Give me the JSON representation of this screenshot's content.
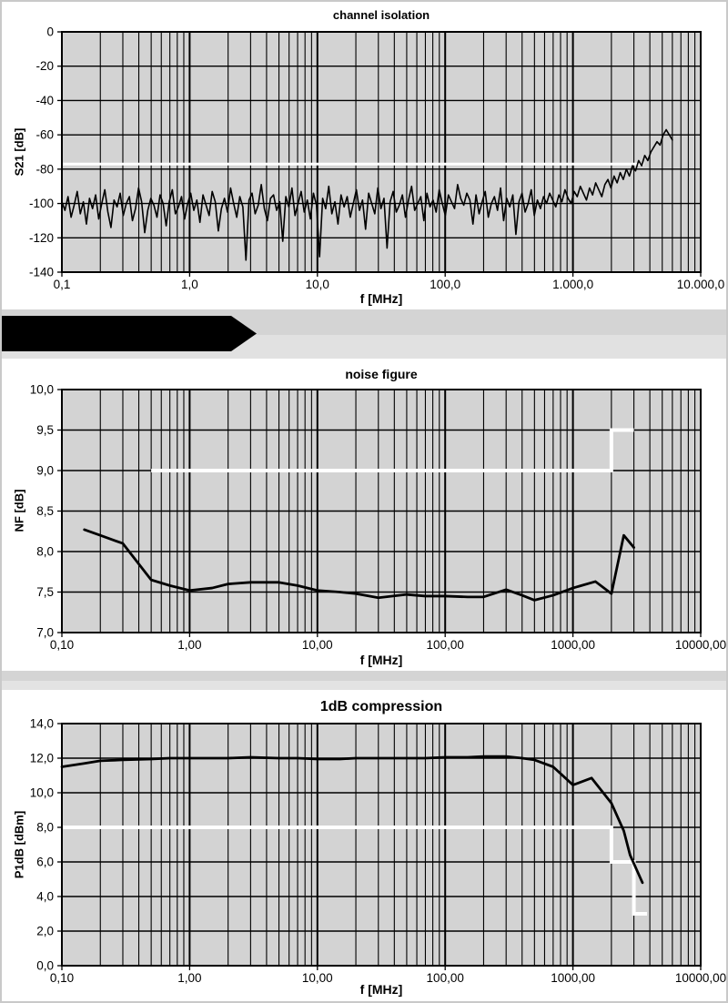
{
  "page": {
    "background": "#ffffff",
    "frame_color": "#c9c9c9",
    "plot_background": "#d3d3d3",
    "grid_color": "#000000",
    "trace_color": "#000000",
    "limit_color": "#ffffff",
    "separator_band_colors": [
      "#d4d4d4",
      "#e1e1e1"
    ]
  },
  "banner": {
    "description": "black right-pointing arrow banner, text unreadable (black on black)",
    "color": "#000000"
  },
  "chart_data": [
    {
      "type": "line",
      "title": "channel isolation",
      "xlabel": "f [MHz]",
      "ylabel": "S21 [dB]",
      "xscale": "log",
      "xlim": [
        0.1,
        10000
      ],
      "ylim": [
        -140,
        0
      ],
      "grid": true,
      "x_ticks": {
        "values": [
          0.1,
          1,
          10,
          100,
          1000,
          10000
        ],
        "labels": [
          "0,1",
          "1,0",
          "10,0",
          "100,0",
          "1.000,0",
          "10.000,0"
        ]
      },
      "y_ticks": {
        "values": [
          0,
          -20,
          -40,
          -60,
          -80,
          -100,
          -120,
          -140
        ],
        "labels": [
          "0",
          "-20",
          "-40",
          "-60",
          "-80",
          "-100",
          "-120",
          "-140"
        ]
      },
      "limit_line": {
        "color": "#ffffff",
        "points": [
          [
            0.1,
            -77
          ],
          [
            3600,
            -77
          ]
        ]
      },
      "series": [
        {
          "x_start": 0.1,
          "x_end": 6000,
          "x_spacing": "log",
          "y": [
            -99,
            -104,
            -96,
            -108,
            -101,
            -93,
            -106,
            -99,
            -112,
            -97,
            -103,
            -95,
            -109,
            -100,
            -92,
            -105,
            -114,
            -98,
            -102,
            -94,
            -107,
            -100,
            -96,
            -110,
            -103,
            -91,
            -99,
            -117,
            -104,
            -97,
            -101,
            -108,
            -95,
            -100,
            -113,
            -99,
            -92,
            -106,
            -102,
            -96,
            -109,
            -100,
            -94,
            -104,
            -98,
            -111,
            -95,
            -101,
            -107,
            -93,
            -99,
            -116,
            -103,
            -97,
            -105,
            -91,
            -100,
            -108,
            -96,
            -102,
            -133,
            -98,
            -94,
            -106,
            -101,
            -89,
            -103,
            -110,
            -97,
            -95,
            -104,
            -99,
            -122,
            -96,
            -102,
            -91,
            -107,
            -100,
            -93,
            -105,
            -98,
            -109,
            -94,
            -101,
            -131,
            -97,
            -103,
            -90,
            -106,
            -99,
            -112,
            -95,
            -102,
            -96,
            -108,
            -100,
            -92,
            -104,
            -98,
            -115,
            -94,
            -100,
            -106,
            -91,
            -103,
            -97,
            -126,
            -99,
            -93,
            -105,
            -101,
            -95,
            -108,
            -98,
            -90,
            -104,
            -100,
            -96,
            -110,
            -94,
            -102,
            -98,
            -105,
            -92,
            -100,
            -107,
            -95,
            -99,
            -103,
            -89,
            -97,
            -101,
            -94,
            -98,
            -112,
            -95,
            -106,
            -99,
            -93,
            -108,
            -100,
            -96,
            -104,
            -91,
            -110,
            -97,
            -102,
            -95,
            -118,
            -99,
            -94,
            -105,
            -100,
            -92,
            -107,
            -98,
            -103,
            -96,
            -100,
            -94,
            -98,
            -102,
            -95,
            -99,
            -92,
            -97,
            -100,
            -93,
            -96,
            -90,
            -94,
            -98,
            -91,
            -95,
            -88,
            -92,
            -96,
            -89,
            -86,
            -91,
            -84,
            -88,
            -82,
            -86,
            -80,
            -84,
            -78,
            -81,
            -75,
            -78,
            -72,
            -75,
            -70,
            -67,
            -64,
            -66,
            -60,
            -57,
            -60,
            -63
          ]
        }
      ]
    },
    {
      "type": "line",
      "title": "noise figure",
      "xlabel": "f [MHz]",
      "ylabel": "NF [dB]",
      "xscale": "log",
      "xlim": [
        0.1,
        10000
      ],
      "ylim": [
        7.0,
        10.0
      ],
      "grid": true,
      "x_ticks": {
        "values": [
          0.1,
          1,
          10,
          100,
          1000,
          10000
        ],
        "labels": [
          "0,10",
          "1,00",
          "10,00",
          "100,00",
          "1000,00",
          "10000,00"
        ]
      },
      "y_ticks": {
        "values": [
          10.0,
          9.5,
          9.0,
          8.5,
          8.0,
          7.5,
          7.0
        ],
        "labels": [
          "10,0",
          "9,5",
          "9,0",
          "8,5",
          "8,0",
          "7,5",
          "7,0"
        ]
      },
      "limit_line": {
        "color": "#ffffff",
        "points": [
          [
            0.5,
            9.0
          ],
          [
            2000,
            9.0
          ],
          [
            2000,
            9.5
          ],
          [
            3000,
            9.5
          ]
        ]
      },
      "series": [
        {
          "x": [
            0.15,
            0.2,
            0.3,
            0.5,
            0.7,
            1,
            1.5,
            2,
            3,
            5,
            7,
            10,
            15,
            20,
            30,
            50,
            70,
            100,
            150,
            200,
            300,
            400,
            500,
            700,
            1000,
            1500,
            2000,
            2500,
            3000
          ],
          "y": [
            8.27,
            8.2,
            8.1,
            7.65,
            7.58,
            7.52,
            7.55,
            7.6,
            7.62,
            7.62,
            7.58,
            7.52,
            7.5,
            7.48,
            7.43,
            7.47,
            7.45,
            7.45,
            7.44,
            7.44,
            7.53,
            7.46,
            7.4,
            7.46,
            7.55,
            7.63,
            7.48,
            8.2,
            8.05
          ]
        }
      ]
    },
    {
      "type": "line",
      "title": "1dB compression",
      "xlabel": "f [MHz]",
      "ylabel": "P1dB [dBm]",
      "xscale": "log",
      "xlim": [
        0.1,
        10000
      ],
      "ylim": [
        0.0,
        14.0
      ],
      "grid": true,
      "x_ticks": {
        "values": [
          0.1,
          1,
          10,
          100,
          1000,
          10000
        ],
        "labels": [
          "0,10",
          "1,00",
          "10,00",
          "100,00",
          "1000,00",
          "10000,00"
        ]
      },
      "y_ticks": {
        "values": [
          14,
          12,
          10,
          8,
          6,
          4,
          2,
          0
        ],
        "labels": [
          "14,0",
          "12,0",
          "10,0",
          "8,0",
          "6,0",
          "4,0",
          "2,0",
          "0,0"
        ]
      },
      "limit_line": {
        "color": "#ffffff",
        "points": [
          [
            0.1,
            8
          ],
          [
            2000,
            8
          ],
          [
            2000,
            6
          ],
          [
            3000,
            6
          ],
          [
            3000,
            3
          ],
          [
            3800,
            3
          ]
        ]
      },
      "series": [
        {
          "x": [
            0.1,
            0.15,
            0.2,
            0.3,
            0.5,
            0.7,
            1,
            2,
            3,
            5,
            7,
            10,
            15,
            20,
            30,
            50,
            70,
            100,
            150,
            200,
            300,
            400,
            500,
            700,
            1000,
            1400,
            2000,
            2500,
            2800,
            3500
          ],
          "y": [
            11.5,
            11.7,
            11.85,
            11.9,
            11.95,
            12.0,
            12.0,
            12.0,
            12.05,
            12.0,
            12.0,
            11.95,
            11.95,
            12.0,
            12.0,
            12.0,
            12.0,
            12.05,
            12.05,
            12.1,
            12.1,
            12.0,
            11.9,
            11.5,
            10.45,
            10.85,
            9.4,
            7.8,
            6.4,
            4.8
          ]
        }
      ]
    }
  ]
}
